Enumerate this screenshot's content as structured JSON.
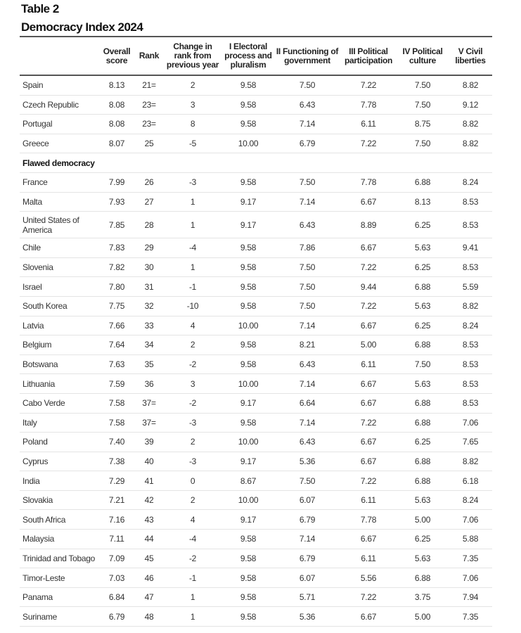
{
  "table_label": "Table 2",
  "title": "Democracy Index 2024",
  "columns": [
    "",
    "Overall score",
    "Rank",
    "Change in rank from previous year",
    "I Electoral process and pluralism",
    "II Functioning of government",
    "III Political participation",
    "IV Political culture",
    "V Civil liberties"
  ],
  "rows": [
    [
      "Spain",
      "8.13",
      "21=",
      "2",
      "9.58",
      "7.50",
      "7.22",
      "7.50",
      "8.82"
    ],
    [
      "Czech Republic",
      "8.08",
      "23=",
      "3",
      "9.58",
      "6.43",
      "7.78",
      "7.50",
      "9.12"
    ],
    [
      "Portugal",
      "8.08",
      "23=",
      "8",
      "9.58",
      "7.14",
      "6.11",
      "8.75",
      "8.82"
    ],
    [
      "Greece",
      "8.07",
      "25",
      "-5",
      "10.00",
      "6.79",
      "7.22",
      "7.50",
      "8.82"
    ],
    {
      "section": "Flawed democracy"
    },
    [
      "France",
      "7.99",
      "26",
      "-3",
      "9.58",
      "7.50",
      "7.78",
      "6.88",
      "8.24"
    ],
    [
      "Malta",
      "7.93",
      "27",
      "1",
      "9.17",
      "7.14",
      "6.67",
      "8.13",
      "8.53"
    ],
    [
      "United States of America",
      "7.85",
      "28",
      "1",
      "9.17",
      "6.43",
      "8.89",
      "6.25",
      "8.53"
    ],
    [
      "Chile",
      "7.83",
      "29",
      "-4",
      "9.58",
      "7.86",
      "6.67",
      "5.63",
      "9.41"
    ],
    [
      "Slovenia",
      "7.82",
      "30",
      "1",
      "9.58",
      "7.50",
      "7.22",
      "6.25",
      "8.53"
    ],
    [
      "Israel",
      "7.80",
      "31",
      "-1",
      "9.58",
      "7.50",
      "9.44",
      "6.88",
      "5.59"
    ],
    [
      "South Korea",
      "7.75",
      "32",
      "-10",
      "9.58",
      "7.50",
      "7.22",
      "5.63",
      "8.82"
    ],
    [
      "Latvia",
      "7.66",
      "33",
      "4",
      "10.00",
      "7.14",
      "6.67",
      "6.25",
      "8.24"
    ],
    [
      "Belgium",
      "7.64",
      "34",
      "2",
      "9.58",
      "8.21",
      "5.00",
      "6.88",
      "8.53"
    ],
    [
      "Botswana",
      "7.63",
      "35",
      "-2",
      "9.58",
      "6.43",
      "6.11",
      "7.50",
      "8.53"
    ],
    [
      "Lithuania",
      "7.59",
      "36",
      "3",
      "10.00",
      "7.14",
      "6.67",
      "5.63",
      "8.53"
    ],
    [
      "Cabo Verde",
      "7.58",
      "37=",
      "-2",
      "9.17",
      "6.64",
      "6.67",
      "6.88",
      "8.53"
    ],
    [
      "Italy",
      "7.58",
      "37=",
      "-3",
      "9.58",
      "7.14",
      "7.22",
      "6.88",
      "7.06"
    ],
    [
      "Poland",
      "7.40",
      "39",
      "2",
      "10.00",
      "6.43",
      "6.67",
      "6.25",
      "7.65"
    ],
    [
      "Cyprus",
      "7.38",
      "40",
      "-3",
      "9.17",
      "5.36",
      "6.67",
      "6.88",
      "8.82"
    ],
    [
      "India",
      "7.29",
      "41",
      "0",
      "8.67",
      "7.50",
      "7.22",
      "6.88",
      "6.18"
    ],
    [
      "Slovakia",
      "7.21",
      "42",
      "2",
      "10.00",
      "6.07",
      "6.11",
      "5.63",
      "8.24"
    ],
    [
      "South Africa",
      "7.16",
      "43",
      "4",
      "9.17",
      "6.79",
      "7.78",
      "5.00",
      "7.06"
    ],
    [
      "Malaysia",
      "7.11",
      "44",
      "-4",
      "9.58",
      "7.14",
      "6.67",
      "6.25",
      "5.88"
    ],
    [
      "Trinidad and Tobago",
      "7.09",
      "45",
      "-2",
      "9.58",
      "6.79",
      "6.11",
      "5.63",
      "7.35"
    ],
    [
      "Timor-Leste",
      "7.03",
      "46",
      "-1",
      "9.58",
      "6.07",
      "5.56",
      "6.88",
      "7.06"
    ],
    [
      "Panama",
      "6.84",
      "47",
      "1",
      "9.58",
      "5.71",
      "7.22",
      "3.75",
      "7.94"
    ],
    [
      "Suriname",
      "6.79",
      "48",
      "1",
      "9.58",
      "5.36",
      "6.67",
      "5.00",
      "7.35"
    ]
  ]
}
